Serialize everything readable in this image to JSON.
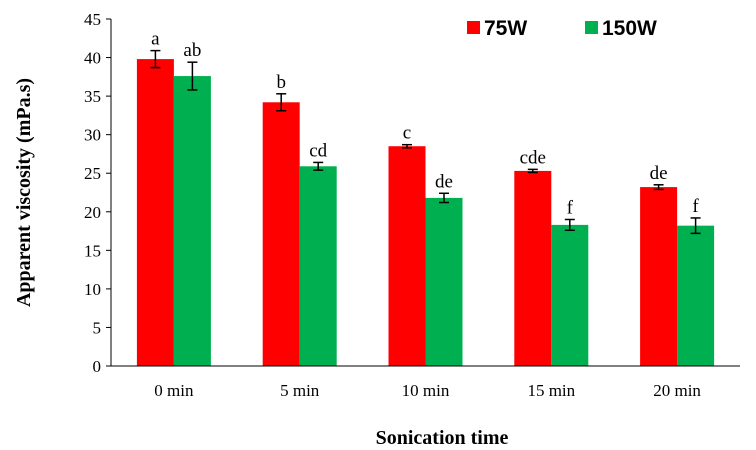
{
  "chart_data": {
    "type": "bar",
    "categories": [
      "0 min",
      "5 min",
      "10 min",
      "15 min",
      "20 min"
    ],
    "series": [
      {
        "name": "75W",
        "color": "#ff0000",
        "values": [
          39.8,
          34.2,
          28.5,
          25.3,
          23.2
        ],
        "errors": [
          1.1,
          1.1,
          0.2,
          0.2,
          0.3
        ],
        "labels": [
          "a",
          "b",
          "c",
          "cde",
          "de"
        ]
      },
      {
        "name": "150W",
        "color": "#00b050",
        "values": [
          37.6,
          25.9,
          21.8,
          18.3,
          18.2
        ],
        "errors": [
          1.8,
          0.5,
          0.6,
          0.7,
          1.0
        ],
        "labels": [
          "ab",
          "cd",
          "de",
          "f",
          "f"
        ]
      }
    ],
    "xlabel": "Sonication time",
    "ylabel": "Apparent viscosity (mPa.s)",
    "ylim": [
      0,
      45
    ],
    "yticks": [
      "0",
      "5",
      "10",
      "15",
      "20",
      "25",
      "30",
      "35",
      "40",
      "45"
    ],
    "grid": false,
    "legend_position": "top-right",
    "error_bars": true
  }
}
